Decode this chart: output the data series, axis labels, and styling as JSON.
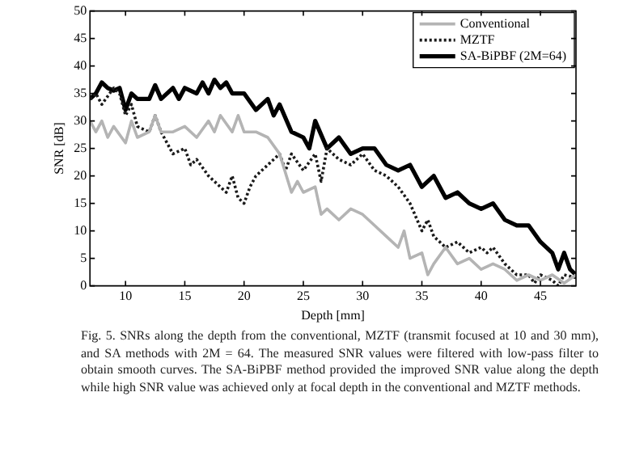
{
  "chart_data": {
    "type": "line",
    "xlabel": "Depth [mm]",
    "ylabel": "SNR [dB]",
    "xlim": [
      7,
      48
    ],
    "xticks": [
      10,
      15,
      20,
      25,
      30,
      35,
      40,
      45
    ],
    "ylim": [
      0,
      50
    ],
    "yticks": [
      0,
      5,
      10,
      15,
      20,
      25,
      30,
      35,
      40,
      45,
      50
    ],
    "grid": false,
    "legend": "top right",
    "marker": "none",
    "series": [
      {
        "name": "Conventional",
        "color": "#b4b4b4",
        "line_style": "solid",
        "x": [
          7,
          7.5,
          8,
          8.5,
          9,
          10,
          10.5,
          11,
          12,
          12.5,
          13,
          14,
          15,
          16,
          17,
          17.5,
          18,
          19,
          19.5,
          20,
          21,
          22,
          23,
          24,
          24.5,
          25,
          26,
          26.5,
          27,
          28,
          29,
          30,
          31,
          32,
          33,
          33.5,
          34,
          35,
          35.5,
          36,
          37,
          38,
          39,
          40,
          41,
          42,
          43,
          44,
          45,
          46,
          47,
          48
        ],
        "values": [
          30,
          28,
          30,
          27,
          29,
          26,
          30,
          27,
          28,
          31,
          28,
          28,
          29,
          27,
          30,
          28,
          31,
          28,
          31,
          28,
          28,
          27,
          24,
          17,
          19,
          17,
          18,
          13,
          14,
          12,
          14,
          13,
          11,
          9,
          7,
          10,
          5,
          6,
          2,
          4,
          7,
          4,
          5,
          3,
          4,
          3,
          1,
          2,
          1,
          2,
          0.5,
          2
        ]
      },
      {
        "name": "MZTF",
        "color": "#1a1a1a",
        "line_style": "dotted",
        "x": [
          7,
          7.5,
          8,
          9,
          9.5,
          10,
          10.5,
          11,
          12,
          12.5,
          13,
          14,
          15,
          15.5,
          16,
          17,
          18,
          18.5,
          19,
          19.5,
          20,
          20.5,
          21,
          22,
          23,
          23.5,
          24,
          25,
          26,
          26.5,
          27,
          28,
          29,
          30,
          31,
          32,
          33,
          34,
          35,
          35.5,
          36,
          37,
          38,
          39,
          40,
          40.5,
          41,
          42,
          43,
          44,
          44.5,
          45,
          46,
          46.5,
          47,
          48
        ],
        "values": [
          34,
          35,
          33,
          36,
          35,
          31,
          33,
          29,
          28,
          31,
          28,
          24,
          25,
          22,
          23,
          20,
          18,
          17,
          20,
          16,
          15,
          18,
          20,
          22,
          24,
          21,
          24,
          21,
          24,
          19,
          25,
          23,
          22,
          24,
          21,
          20,
          18,
          15,
          10,
          12,
          9,
          7,
          8,
          6,
          7,
          6,
          7,
          4,
          2,
          2,
          0.5,
          2,
          1,
          0,
          2,
          1.5
        ]
      },
      {
        "name": "SA-BiPBF (2M=64)",
        "color": "#000000",
        "line_style": "solid",
        "x": [
          7,
          7.5,
          8,
          8.5,
          9,
          9.5,
          10,
          10.5,
          11,
          12,
          12.5,
          13,
          14,
          14.5,
          15,
          16,
          16.5,
          17,
          17.5,
          18,
          18.5,
          19,
          20,
          21,
          22,
          22.5,
          23,
          24,
          25,
          25.5,
          26,
          27,
          28,
          29,
          30,
          31,
          32,
          33,
          34,
          35,
          36,
          37,
          38,
          39,
          40,
          41,
          42,
          43,
          44,
          45,
          46,
          46.5,
          47,
          47.5,
          48
        ],
        "values": [
          34,
          35,
          37,
          36,
          35.5,
          36,
          32,
          35,
          34,
          34,
          36.5,
          34,
          36,
          34,
          36,
          35,
          37,
          35,
          37.5,
          36,
          37,
          35,
          35,
          32,
          34,
          31,
          33,
          28,
          27,
          25,
          30,
          25,
          27,
          24,
          25,
          25,
          22,
          21,
          22,
          18,
          20,
          16,
          17,
          15,
          14,
          15,
          12,
          11,
          11,
          8,
          6,
          3,
          6,
          3,
          2
        ]
      }
    ],
    "annotations": [
      "Fig. 5.    SNRs along the depth from the conventional, MZTF (transmit focused at 10 and 30 mm), and SA methods with 2M = 64. The measured SNR values were filtered with low-pass filter to obtain smooth curves. The SA-BiPBF method provided the improved SNR value along the depth while high SNR value was achieved only at focal depth in the conventional and MZTF methods."
    ]
  }
}
